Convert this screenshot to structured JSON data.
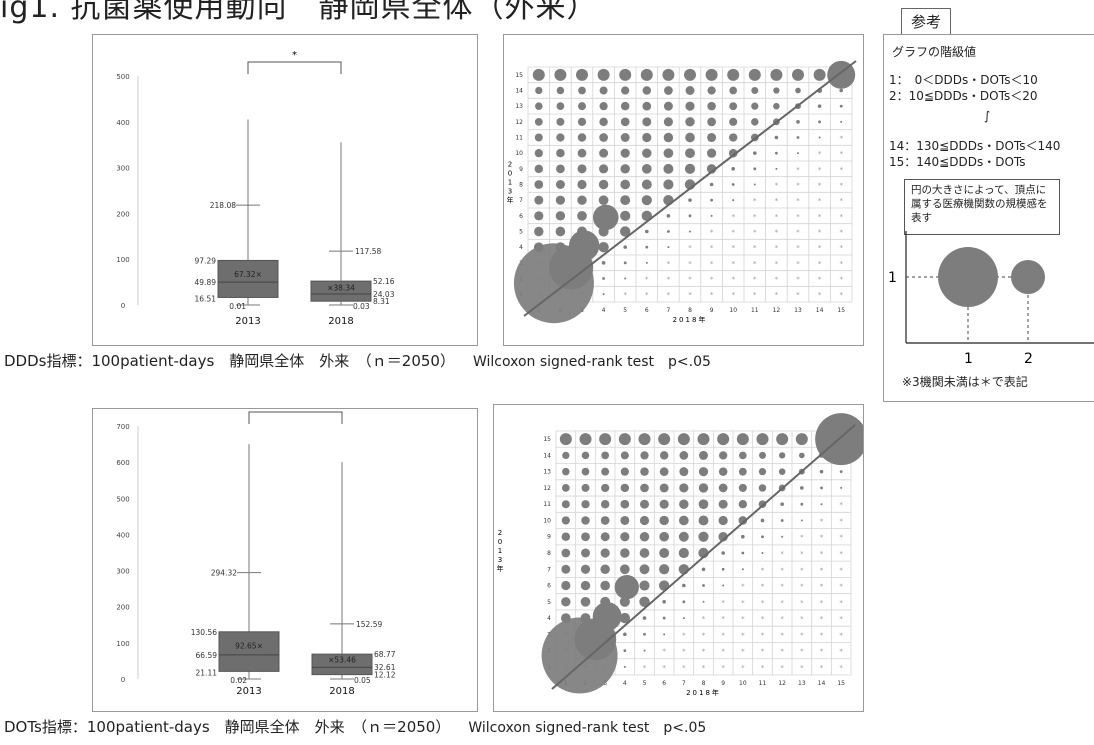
{
  "page": {
    "title": "ig1. 抗菌薬使用動向　静岡県全体（外来）"
  },
  "row1": {
    "caption": "DDDs指標：100patient-days　静岡県全体　外来　（ｎ＝2050）",
    "test": "Wilcoxon signed-rank test　p<.05"
  },
  "row2": {
    "caption": "DOTs指標：100patient-days　静岡県全体　外来　（ｎ＝2050）",
    "test": "Wilcoxon signed-rank test　p<.05"
  },
  "reference": {
    "tab": "参考",
    "heading": "グラフの階級値",
    "line1": "1：　0＜DDDs・DOTs＜10",
    "line2": "2：10≦DDDs・DOTs＜20",
    "line_ellipsis": "∫",
    "line14": "14：130≦DDDs・DOTs＜140",
    "line15": "15：140≦DDDs・DOTs",
    "note": "円の大きさによって、頂点に属する医療機関数の規模感を表す",
    "axis_y": "1",
    "axis_x1": "1",
    "axis_x2": "2",
    "footnote": "※3機関未満は＊で表記",
    "accent_color": "#7d7d7d"
  },
  "chart_data": [
    {
      "type": "box",
      "title": "",
      "categories": [
        "2013",
        "2018"
      ],
      "ylim": [
        0,
        500
      ],
      "yticks": [
        0,
        100,
        200,
        300,
        400,
        500
      ],
      "significance": "*",
      "boxes": [
        {
          "label": "2013",
          "whisker_low": 0.01,
          "q1": 16.51,
          "median": 49.89,
          "q3": 97.29,
          "upper_fence": 218.08,
          "max": 405,
          "mean": 67.32,
          "mean_label": "67.32×"
        },
        {
          "label": "2018",
          "whisker_low": 0.03,
          "q1": 8.31,
          "median": 24.03,
          "q3": 52.16,
          "upper_fence": 117.58,
          "max": 355,
          "mean": 38.34,
          "mean_label": "×38.34"
        }
      ]
    },
    {
      "type": "scatter",
      "subtype": "bubble",
      "xlabel": "2018年",
      "ylabel": "2013年",
      "xlim": [
        0,
        15
      ],
      "ylim": [
        0,
        15
      ],
      "xticks": [
        1,
        2,
        3,
        4,
        5,
        6,
        7,
        8,
        9,
        10,
        11,
        12,
        13,
        14,
        15
      ],
      "yticks": [
        1,
        2,
        3,
        4,
        5,
        6,
        7,
        8,
        9,
        10,
        11,
        12,
        13,
        14,
        15
      ],
      "diagonal": true
    },
    {
      "type": "box",
      "title": "",
      "categories": [
        "2013",
        "2018"
      ],
      "ylim": [
        0,
        700
      ],
      "yticks": [
        0,
        100,
        200,
        300,
        400,
        500,
        600,
        700
      ],
      "significance": "*",
      "boxes": [
        {
          "label": "2013",
          "whisker_low": 0.02,
          "q1": 21.11,
          "median": 66.59,
          "q3": 130.56,
          "upper_fence": 294.32,
          "max": 650,
          "mean": 92.65,
          "mean_label": "92.65×"
        },
        {
          "label": "2018",
          "whisker_low": 0.05,
          "q1": 12.12,
          "median": 32.61,
          "q3": 68.77,
          "upper_fence": 152.59,
          "max": 600,
          "mean": 53.46,
          "mean_label": "×53.46"
        }
      ]
    },
    {
      "type": "scatter",
      "subtype": "bubble",
      "xlabel": "2018年",
      "ylabel": "2013年",
      "xlim": [
        0,
        15
      ],
      "ylim": [
        0,
        15
      ],
      "xticks": [
        1,
        2,
        3,
        4,
        5,
        6,
        7,
        8,
        9,
        10,
        11,
        12,
        13,
        14,
        15
      ],
      "yticks": [
        1,
        2,
        3,
        4,
        5,
        6,
        7,
        8,
        9,
        10,
        11,
        12,
        13,
        14,
        15
      ],
      "diagonal": true
    }
  ]
}
